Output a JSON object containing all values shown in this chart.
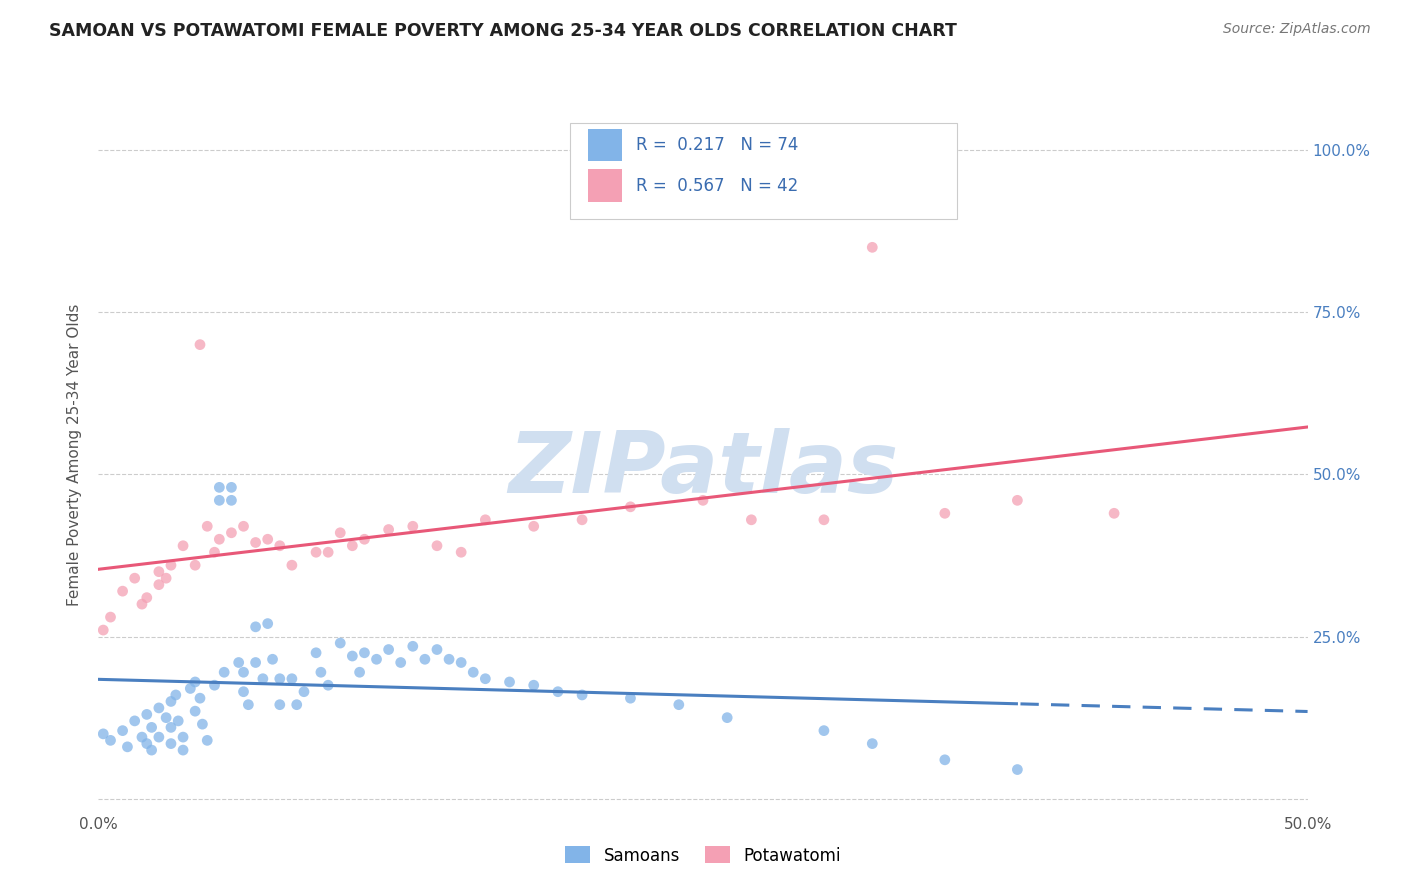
{
  "title": "SAMOAN VS POTAWATOMI FEMALE POVERTY AMONG 25-34 YEAR OLDS CORRELATION CHART",
  "source": "Source: ZipAtlas.com",
  "ylabel": "Female Poverty Among 25-34 Year Olds",
  "xlim": [
    0.0,
    0.5
  ],
  "ylim": [
    -0.02,
    1.08
  ],
  "background_color": "#ffffff",
  "grid_color": "#cccccc",
  "watermark_text": "ZIPatlas",
  "watermark_color": "#d0dff0",
  "samoans_color": "#82b4e8",
  "potawatomi_color": "#f4a0b4",
  "samoans_line_color": "#4a7fc0",
  "potawatomi_line_color": "#e85878",
  "R_samoans": 0.217,
  "N_samoans": 74,
  "R_potawatomi": 0.567,
  "N_potawatomi": 42,
  "legend_text_color": "#3a6cb0",
  "title_fontsize": 12.5,
  "samoans_x": [
    0.002,
    0.005,
    0.01,
    0.012,
    0.015,
    0.018,
    0.02,
    0.02,
    0.022,
    0.022,
    0.025,
    0.025,
    0.028,
    0.03,
    0.03,
    0.03,
    0.032,
    0.033,
    0.035,
    0.035,
    0.038,
    0.04,
    0.04,
    0.042,
    0.043,
    0.045,
    0.048,
    0.05,
    0.05,
    0.052,
    0.055,
    0.055,
    0.058,
    0.06,
    0.06,
    0.062,
    0.065,
    0.065,
    0.068,
    0.07,
    0.072,
    0.075,
    0.075,
    0.08,
    0.082,
    0.085,
    0.09,
    0.092,
    0.095,
    0.1,
    0.105,
    0.108,
    0.11,
    0.115,
    0.12,
    0.125,
    0.13,
    0.135,
    0.14,
    0.145,
    0.15,
    0.155,
    0.16,
    0.17,
    0.18,
    0.19,
    0.2,
    0.22,
    0.24,
    0.26,
    0.3,
    0.32,
    0.35,
    0.38
  ],
  "samoans_y": [
    0.1,
    0.09,
    0.105,
    0.08,
    0.12,
    0.095,
    0.13,
    0.085,
    0.11,
    0.075,
    0.14,
    0.095,
    0.125,
    0.15,
    0.11,
    0.085,
    0.16,
    0.12,
    0.095,
    0.075,
    0.17,
    0.18,
    0.135,
    0.155,
    0.115,
    0.09,
    0.175,
    0.48,
    0.46,
    0.195,
    0.48,
    0.46,
    0.21,
    0.195,
    0.165,
    0.145,
    0.265,
    0.21,
    0.185,
    0.27,
    0.215,
    0.185,
    0.145,
    0.185,
    0.145,
    0.165,
    0.225,
    0.195,
    0.175,
    0.24,
    0.22,
    0.195,
    0.225,
    0.215,
    0.23,
    0.21,
    0.235,
    0.215,
    0.23,
    0.215,
    0.21,
    0.195,
    0.185,
    0.18,
    0.175,
    0.165,
    0.16,
    0.155,
    0.145,
    0.125,
    0.105,
    0.085,
    0.06,
    0.045
  ],
  "potawatomi_x": [
    0.002,
    0.005,
    0.01,
    0.015,
    0.018,
    0.02,
    0.025,
    0.025,
    0.028,
    0.03,
    0.035,
    0.04,
    0.042,
    0.045,
    0.048,
    0.05,
    0.055,
    0.06,
    0.065,
    0.07,
    0.075,
    0.08,
    0.09,
    0.095,
    0.1,
    0.105,
    0.11,
    0.12,
    0.13,
    0.14,
    0.15,
    0.16,
    0.18,
    0.2,
    0.22,
    0.25,
    0.27,
    0.3,
    0.32,
    0.35,
    0.38,
    0.42
  ],
  "potawatomi_y": [
    0.26,
    0.28,
    0.32,
    0.34,
    0.3,
    0.31,
    0.35,
    0.33,
    0.34,
    0.36,
    0.39,
    0.36,
    0.7,
    0.42,
    0.38,
    0.4,
    0.41,
    0.42,
    0.395,
    0.4,
    0.39,
    0.36,
    0.38,
    0.38,
    0.41,
    0.39,
    0.4,
    0.415,
    0.42,
    0.39,
    0.38,
    0.43,
    0.42,
    0.43,
    0.45,
    0.46,
    0.43,
    0.43,
    0.85,
    0.44,
    0.46,
    0.44
  ]
}
